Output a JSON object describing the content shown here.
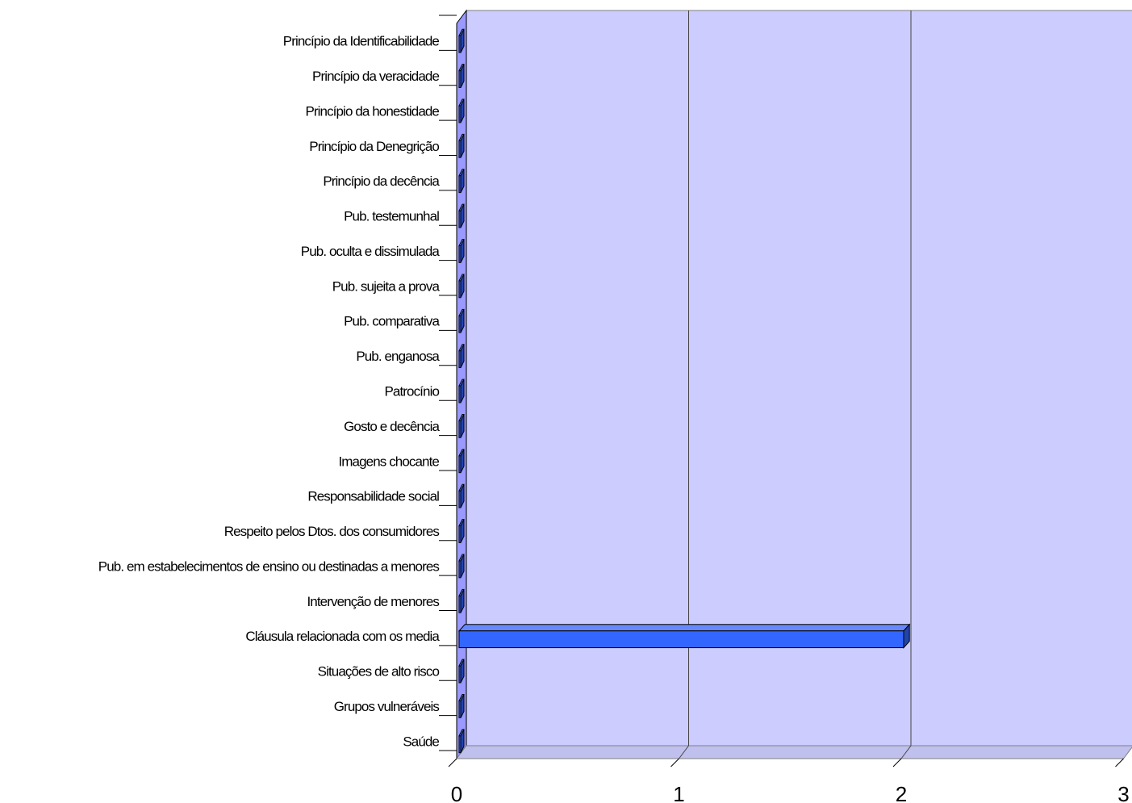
{
  "chart_data": {
    "type": "bar",
    "orientation": "horizontal",
    "style": "3d",
    "categories": [
      "Princípio da Identificabilidade",
      "Princípio da veracidade",
      "Princípio da honestidade",
      "Princípio da Denegrição",
      "Princípio da decência",
      "Pub. testemunhal",
      "Pub. oculta e dissimulada",
      "Pub. sujeita a prova",
      "Pub. comparativa",
      "Pub. enganosa",
      "Patrocínio",
      "Gosto e decência",
      "Imagens chocante",
      "Responsabilidade social",
      "Respeito pelos Dtos. dos consumidores",
      "Pub. em estabelecimentos de ensino ou destinadas a menores",
      "Intervenção de menores",
      "Cláusula relacionada com os media",
      "Situações de alto risco",
      "Grupos vulneráveis",
      "Saúde"
    ],
    "values": [
      0,
      0,
      0,
      0,
      0,
      0,
      0,
      0,
      0,
      0,
      0,
      0,
      0,
      0,
      0,
      0,
      0,
      2,
      0,
      0,
      0
    ],
    "xlim": [
      0,
      3
    ],
    "xticks": [
      0,
      1,
      2,
      3
    ],
    "xtick_labels": [
      "0",
      "1",
      "2",
      "3"
    ],
    "gridlines": "vertical",
    "legend": "none",
    "colors": {
      "plot_back_wall": "#ccccff",
      "plot_side_wall": "#9999ff",
      "plot_floor": "#c0c0ee",
      "bar_front": "#3366ff",
      "bar_top": "#6688ff",
      "bar_side": "#2244aa",
      "outline": "#000000",
      "gridline": "#444444"
    }
  }
}
